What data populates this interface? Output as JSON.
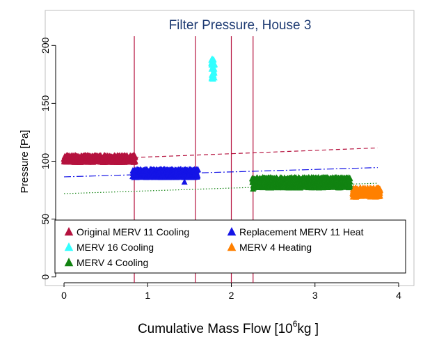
{
  "chart_data": {
    "type": "scatter",
    "title": "Filter Pressure, House 3",
    "xlabel_parts": {
      "pre": "Cumulative Mass Flow [10",
      "sup": "6",
      "post": "kg ]"
    },
    "ylabel": "Pressure [Pa]",
    "xlim": [
      -0.1,
      4.1
    ],
    "ylim": [
      -5,
      208
    ],
    "xticks": [
      "0",
      "1",
      "2",
      "3",
      "4"
    ],
    "yticks": [
      "0",
      "50",
      "100",
      "150",
      "200"
    ],
    "grid": false,
    "legend_position": "bottom",
    "vertical_lines_x": [
      0.84,
      1.57,
      2.0,
      2.26
    ],
    "vertical_line_color": "#b5123e",
    "series": [
      {
        "name": "Original MERV 11 Cooling",
        "color": "#b5123e",
        "x_range": [
          0.0,
          0.85
        ],
        "y_range": [
          99,
          105
        ]
      },
      {
        "name": "Replacement MERV 11 Heat",
        "color": "#1414e6",
        "x_range": [
          0.82,
          1.6
        ],
        "y_range": [
          86,
          93
        ]
      },
      {
        "name": "MERV 16 Cooling",
        "color": "#33ffff",
        "x_range": [
          1.76,
          1.8
        ],
        "y_range": [
          171,
          189
        ]
      },
      {
        "name": "MERV 4 Heating",
        "color": "#ff8000",
        "x_range": [
          3.45,
          3.78
        ],
        "y_range": [
          69,
          77
        ]
      },
      {
        "name": "MERV 4 Cooling",
        "color": "#118311",
        "x_range": [
          2.25,
          3.42
        ],
        "y_range": [
          77,
          86
        ]
      }
    ],
    "outlier_points": [
      {
        "x": 1.44,
        "y": 82,
        "color": "#1414e6"
      },
      {
        "x": 2.26,
        "y": 76,
        "color": "#118311"
      }
    ],
    "trend_lines": [
      {
        "color": "#b5123e",
        "dash": "6,4",
        "x": [
          0.84,
          3.75
        ],
        "y": [
          103.2,
          111.5
        ]
      },
      {
        "color": "#1414e6",
        "dash": "10,3,2,3",
        "x": [
          0.0,
          3.75
        ],
        "y": [
          86.5,
          94.5
        ]
      },
      {
        "color": "#118311",
        "dash": "1.5,2.5",
        "x": [
          0.0,
          3.75
        ],
        "y": [
          72.0,
          81.0
        ]
      }
    ]
  }
}
